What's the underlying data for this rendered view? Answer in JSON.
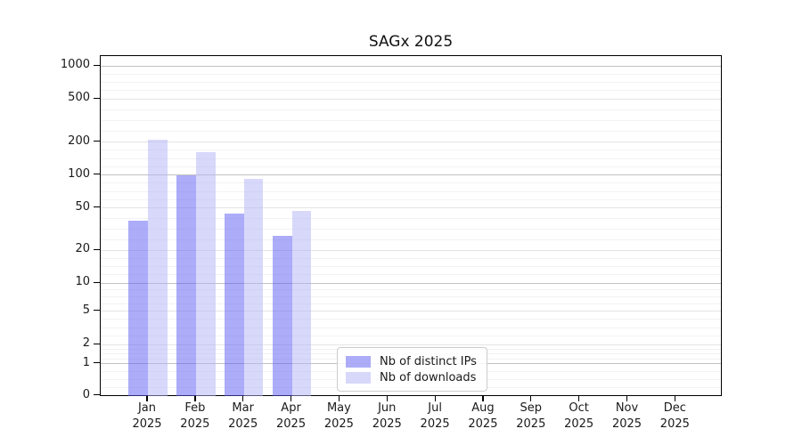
{
  "title": "SAGx 2025",
  "chart_data": {
    "type": "bar",
    "title": "SAGx 2025",
    "categories": [
      "Jan 2025",
      "Feb 2025",
      "Mar 2025",
      "Apr 2025",
      "May 2025",
      "Jun 2025",
      "Jul 2025",
      "Aug 2025",
      "Sep 2025",
      "Oct 2025",
      "Nov 2025",
      "Dec 2025"
    ],
    "x_tick_months": [
      "Jan",
      "Feb",
      "Mar",
      "Apr",
      "May",
      "Jun",
      "Jul",
      "Aug",
      "Sep",
      "Oct",
      "Nov",
      "Dec"
    ],
    "x_tick_year": "2025",
    "series": [
      {
        "name": "Nb of distinct IPs",
        "color": "rgba(90,90,243,0.5)",
        "blended_color": "#aaaaf8",
        "values": [
          38,
          100,
          44,
          27,
          null,
          null,
          null,
          null,
          null,
          null,
          null,
          null
        ]
      },
      {
        "name": "Nb of downloads",
        "color": "rgba(178,178,248,0.5)",
        "blended_color": "#d8d8fb",
        "values": [
          210,
          160,
          93,
          47,
          null,
          null,
          null,
          null,
          null,
          null,
          null,
          null
        ]
      }
    ],
    "y_axis": {
      "scale": "symlog",
      "ticks": [
        0,
        1,
        2,
        5,
        10,
        20,
        50,
        100,
        200,
        500,
        1000
      ],
      "range": [
        0,
        1100
      ]
    },
    "grid": "horizontal major and minor lines",
    "legend_position": "lower center"
  },
  "legend": {
    "items": [
      {
        "label": "Nb of distinct IPs",
        "color": "rgba(90,90,243,0.5)"
      },
      {
        "label": "Nb of downloads",
        "color": "rgba(178,178,248,0.5)"
      }
    ]
  },
  "colors": {
    "grid_major": "#c2c2c2",
    "grid_labeled": "#e4e4e4",
    "grid_minor": "#f2f2f2",
    "spine": "#000000"
  }
}
